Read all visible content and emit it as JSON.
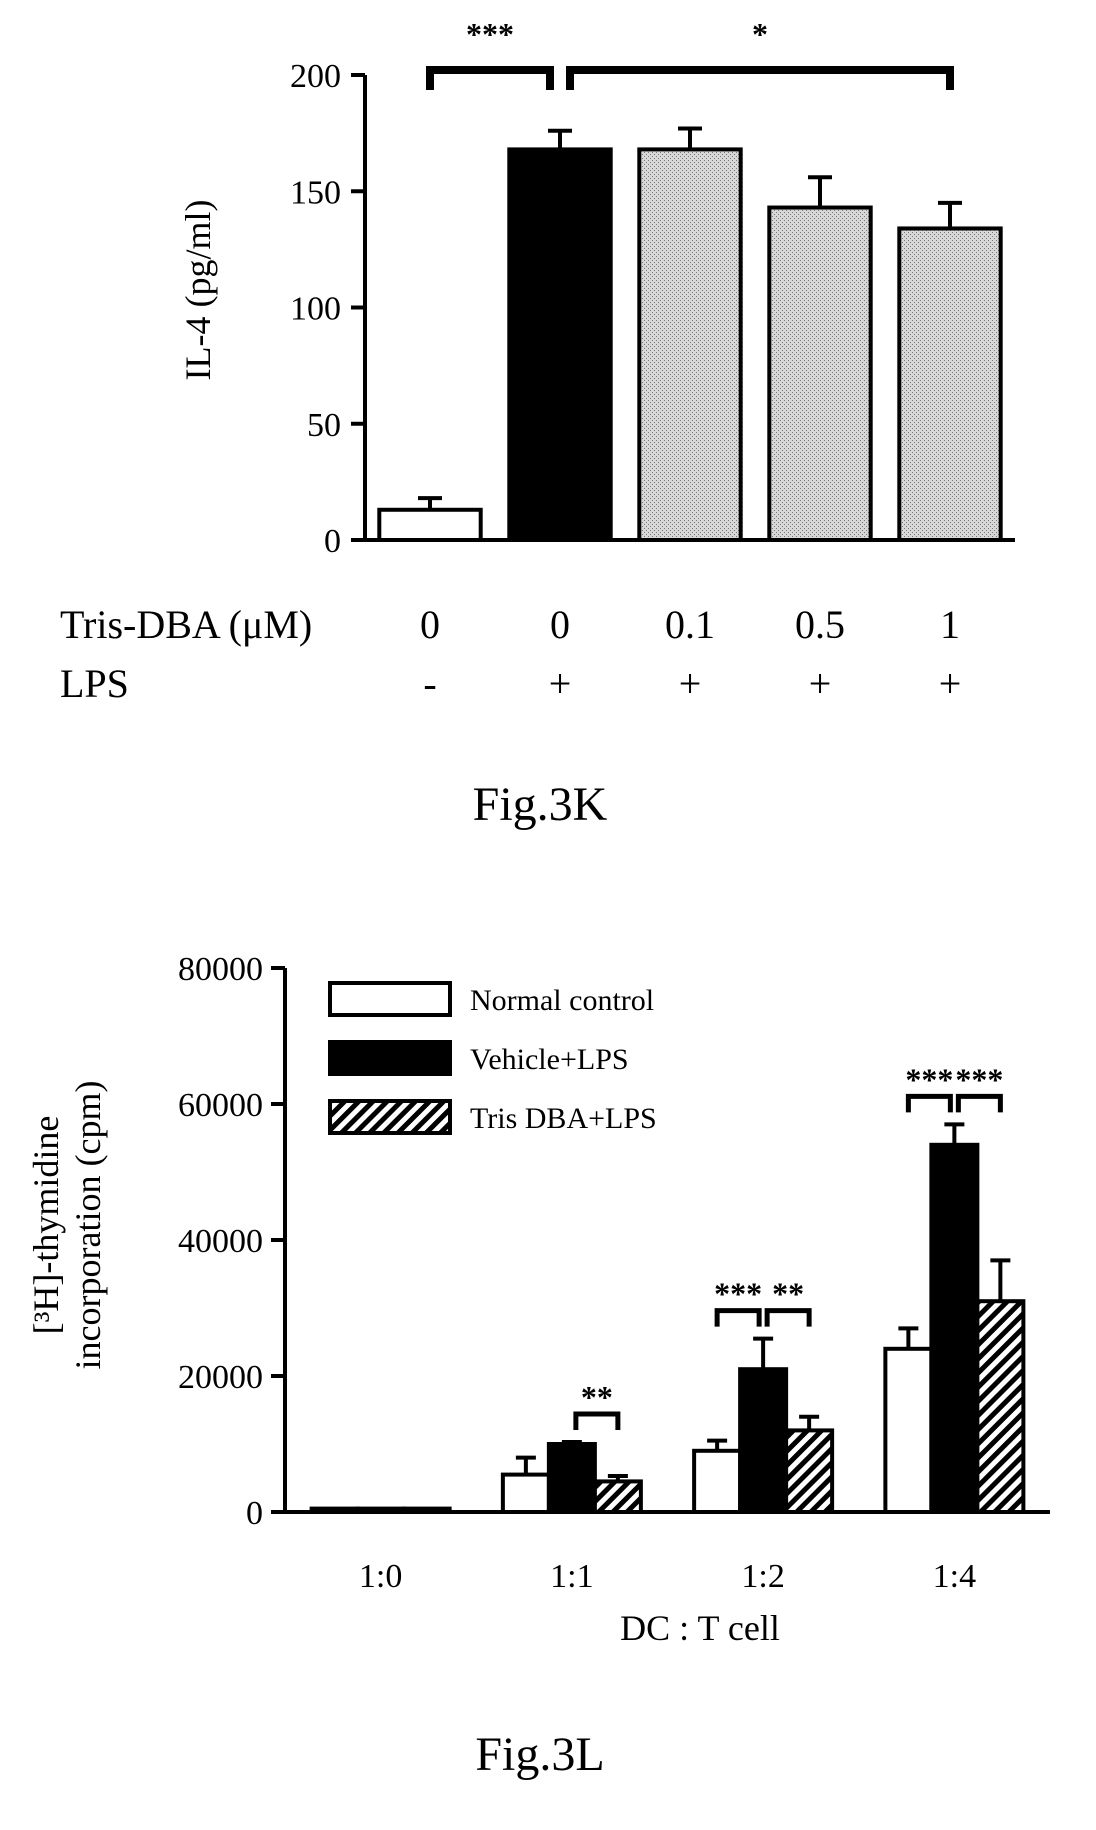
{
  "chart_data": [
    {
      "type": "bar",
      "caption": "Fig.3K",
      "ylabel": "IL-4 (pg/ml)",
      "ylim": [
        0,
        200
      ],
      "yticks": [
        "0",
        "50",
        "100",
        "150",
        "200"
      ],
      "row_labels": {
        "tris": "Tris-DBA (μM)",
        "lps": "LPS"
      },
      "categories": [
        {
          "tris": "0",
          "lps": "-"
        },
        {
          "tris": "0",
          "lps": "+"
        },
        {
          "tris": "0.1",
          "lps": "+"
        },
        {
          "tris": "0.5",
          "lps": "+"
        },
        {
          "tris": "1",
          "lps": "+"
        }
      ],
      "values": [
        13,
        168,
        168,
        143,
        134
      ],
      "errors": [
        5,
        8,
        9,
        13,
        11
      ],
      "fills": [
        "#ffffff",
        "#000000",
        "#c8c8c8",
        "#c8c8c8",
        "#c8c8c8"
      ],
      "significance": [
        {
          "from": 0,
          "to": 1,
          "label": "***"
        },
        {
          "from": 1,
          "to": 4,
          "label": "*"
        }
      ]
    },
    {
      "type": "bar",
      "caption": "Fig.3L",
      "ylabel": [
        "[³H]-thymidine",
        "incorporation (cpm)"
      ],
      "xlabel": "DC : T cell",
      "ylim": [
        0,
        80000
      ],
      "yticks": [
        "0",
        "20000",
        "40000",
        "60000",
        "80000"
      ],
      "categories": [
        "1:0",
        "1:1",
        "1:2",
        "1:4"
      ],
      "series": [
        {
          "name": "Normal control",
          "values": [
            500,
            5500,
            9000,
            24000
          ],
          "errors": [
            0,
            2500,
            1500,
            3000
          ],
          "fill": "#ffffff"
        },
        {
          "name": "Vehicle+LPS",
          "values": [
            500,
            10000,
            21000,
            54000
          ],
          "errors": [
            0,
            300,
            4500,
            3000
          ],
          "fill": "#000000"
        },
        {
          "name": "Tris DBA+LPS",
          "values": [
            500,
            4500,
            12000,
            31000
          ],
          "errors": [
            0,
            800,
            2000,
            6000
          ],
          "fill": "hatched"
        }
      ],
      "legend_position": "top-left",
      "significance": [
        {
          "group": 1,
          "from": 1,
          "to": 2,
          "label": "**"
        },
        {
          "group": 2,
          "from": 0,
          "to": 1,
          "label": "***"
        },
        {
          "group": 2,
          "from": 1,
          "to": 2,
          "label": "**"
        },
        {
          "group": 3,
          "from": 0,
          "to": 1,
          "label": "***"
        },
        {
          "group": 3,
          "from": 1,
          "to": 2,
          "label": "***"
        }
      ]
    }
  ]
}
